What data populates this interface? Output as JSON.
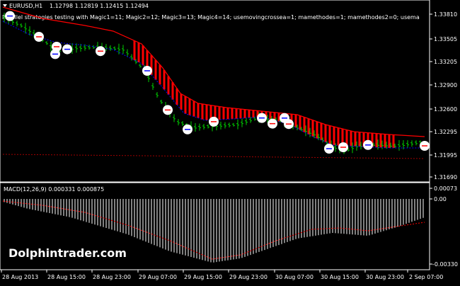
{
  "main_panel": {
    "symbol_label": "EURUSD,H1",
    "ohlc_values": "1.12798 1.12819 1.12415 1.12494",
    "indicator_text": "Parallel strategies testing with Magic1=11; Magic2=12; Magic3=13; Magic4=14; usemovingcrossea=1; mamethodes=1; mamethodes2=0; usema",
    "price_labels": [
      "1.33810",
      "1.33505",
      "1.33205",
      "1.32900",
      "1.32600",
      "1.32295",
      "1.31995",
      "1.31690"
    ]
  },
  "macd_panel": {
    "label": "MACD(12,26,9) 0.000331 0.000875",
    "level_labels": [
      "0.00073",
      "0.00",
      "-0.00330"
    ]
  },
  "time_axis": {
    "labels": [
      "28 Aug 2013",
      "28 Aug 15:00",
      "28 Aug 23:00",
      "29 Aug 07:00",
      "29 Aug 15:00",
      "29 Aug 23:00",
      "30 Aug 07:00",
      "30 Aug 15:00",
      "30 Aug 23:00",
      "2 Sep 07:00"
    ]
  },
  "watermark": "Dolphintrader.com",
  "colors": {
    "background": "#000000",
    "axis": "#ffffff",
    "bars": "#00cc00",
    "ma_fast": "#ff0000",
    "ma_slow": "#0000ff",
    "histogram": "#ffffff",
    "signal": "#ff0000",
    "marker": "#ffffff"
  }
}
